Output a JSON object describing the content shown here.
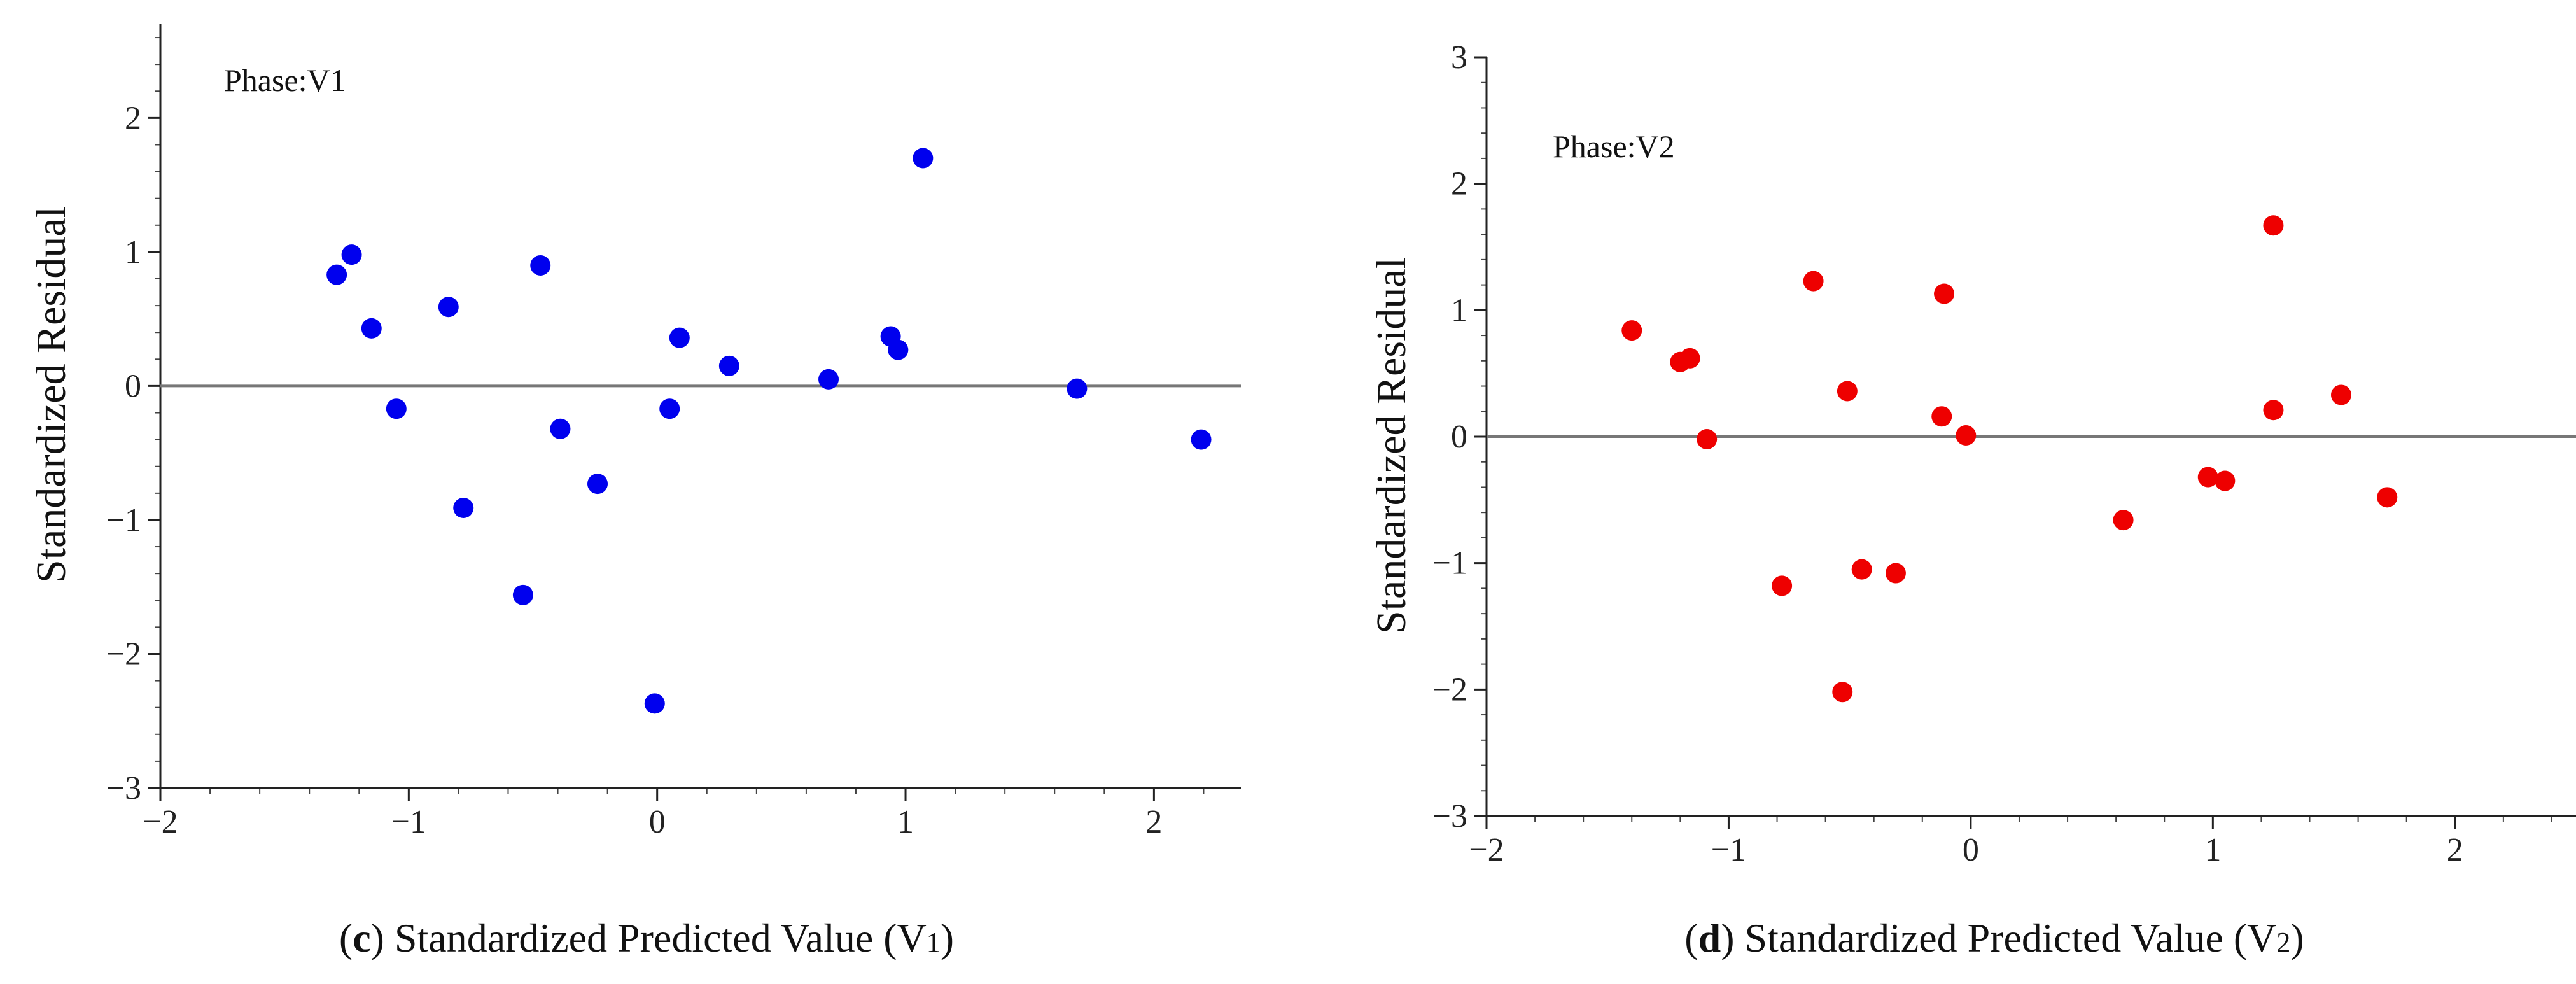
{
  "chart_data": [
    {
      "type": "scatter",
      "id": "c",
      "title": "Phase:V1",
      "ylabel": "Standardized Residual",
      "caption": {
        "letter": "c",
        "text": "Standardized Predicted Value (V",
        "sub": "1",
        "close": ")"
      },
      "xlim": [
        -2,
        2.35
      ],
      "ylim": [
        -3,
        2.7
      ],
      "xticks": [
        -2,
        -1,
        0,
        1,
        2
      ],
      "xtick_labels": [
        "−2",
        "−1",
        "0",
        "1",
        "2"
      ],
      "yticks": [
        -3,
        -2,
        -1,
        0,
        1,
        2
      ],
      "ytick_labels": [
        "−3",
        "−2",
        "−1",
        "0",
        "1",
        "2"
      ],
      "ref_line_y": 0,
      "marker_color": "#0000ee",
      "x": [
        -1.29,
        -1.23,
        -1.15,
        -1.05,
        -0.84,
        -0.78,
        -0.54,
        -0.47,
        -0.39,
        -0.24,
        -0.01,
        0.05,
        0.09,
        0.29,
        0.69,
        0.94,
        0.97,
        1.07,
        1.69,
        2.19
      ],
      "y": [
        0.83,
        0.98,
        0.43,
        -0.17,
        0.59,
        -0.91,
        -1.56,
        0.9,
        -0.32,
        -0.73,
        -2.37,
        -0.17,
        0.36,
        0.15,
        0.05,
        0.37,
        0.27,
        1.7,
        -0.02,
        -0.4
      ]
    },
    {
      "type": "scatter",
      "id": "d",
      "title": "Phase:V2",
      "ylabel": "Standardized Residual",
      "caption": {
        "letter": "d",
        "text": "Standardized Predicted Value (V",
        "sub": "2",
        "close": ")"
      },
      "xlim": [
        -2,
        2.5
      ],
      "ylim": [
        -3,
        3
      ],
      "xticks": [
        -2,
        -1,
        0,
        1,
        2
      ],
      "xtick_labels": [
        "−2",
        "−1",
        "0",
        "1",
        "2"
      ],
      "yticks": [
        -3,
        -2,
        -1,
        0,
        1,
        2,
        3
      ],
      "ytick_labels": [
        "−3",
        "−2",
        "−1",
        "0",
        "1",
        "2",
        "3"
      ],
      "ref_line_y": 0,
      "marker_color": "#ee0000",
      "x": [
        -1.4,
        -1.2,
        -1.16,
        -1.09,
        -0.78,
        -0.65,
        -0.53,
        -0.51,
        -0.45,
        -0.31,
        -0.12,
        -0.11,
        -0.02,
        0.63,
        0.98,
        1.05,
        1.25,
        1.25,
        1.53,
        1.72
      ],
      "y": [
        0.84,
        0.59,
        0.62,
        -0.02,
        -1.18,
        1.23,
        -2.02,
        0.36,
        -1.05,
        -1.08,
        0.16,
        1.13,
        0.01,
        -0.66,
        -0.32,
        -0.35,
        1.67,
        0.21,
        0.33,
        -0.48
      ]
    }
  ]
}
